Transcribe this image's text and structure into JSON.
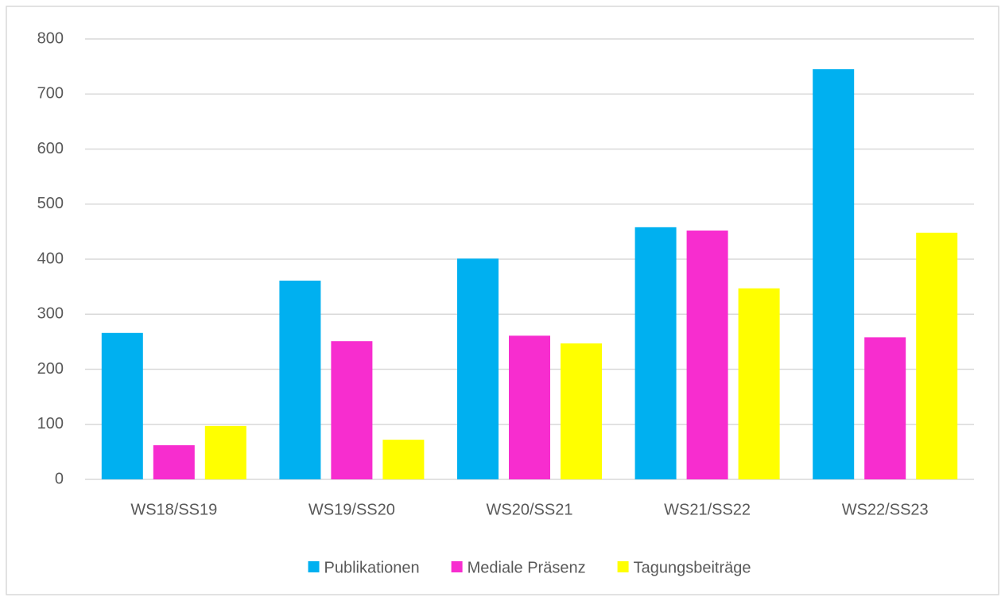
{
  "chart_data": {
    "type": "bar",
    "categories": [
      "WS18/SS19",
      "WS19/SS20",
      "WS20/SS21",
      "WS21/SS22",
      "WS22/SS23"
    ],
    "series": [
      {
        "name": "Publikationen",
        "color": "#00b0f0",
        "values": [
          266,
          361,
          401,
          458,
          745
        ]
      },
      {
        "name": "Mediale Präsenz",
        "color": "#f72dcf",
        "values": [
          62,
          251,
          261,
          452,
          258
        ]
      },
      {
        "name": "Tagungsbeiträge",
        "color": "#ffff00",
        "values": [
          97,
          72,
          247,
          347,
          448
        ]
      }
    ],
    "ylim": [
      0,
      800
    ],
    "yticks": [
      0,
      100,
      200,
      300,
      400,
      500,
      600,
      700,
      800
    ],
    "grid": true,
    "legend": "bottom"
  }
}
